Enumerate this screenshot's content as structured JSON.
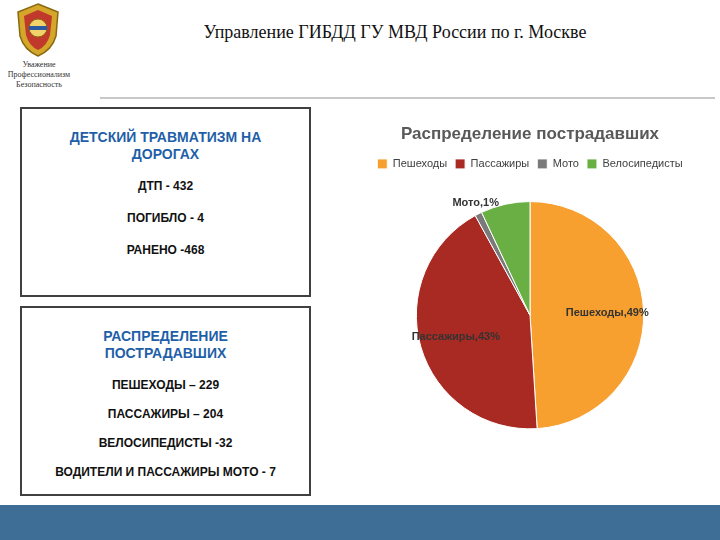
{
  "header": {
    "title": "Управление ГИБДД ГУ МВД России по г. Москве",
    "motto": [
      "Уважение",
      "Профессионализм",
      "Безопасность"
    ]
  },
  "boxes": [
    {
      "title": "ДЕТСКИЙ ТРАВМАТИЗМ НА ДОРОГАХ",
      "lines": [
        "ДТП - 432",
        "ПОГИБЛО - 4",
        "РАНЕНО -468"
      ]
    },
    {
      "title": "РАСПРЕДЕЛЕНИЕ ПОСТРАДАВШИХ",
      "lines": [
        "ПЕШЕХОДЫ – 229",
        "ПАССАЖИРЫ – 204",
        "ВЕЛОСИПЕДИСТЫ -32",
        "ВОДИТЕЛИ И ПАССАЖИРЫ МОТО - 7"
      ]
    }
  ],
  "chart_data": {
    "type": "pie",
    "title": "Распределение пострадавших",
    "categories": [
      "Пешеходы",
      "Пассажиры",
      "Мото",
      "Велосипедисты"
    ],
    "values": [
      49,
      43,
      1,
      7
    ],
    "colors": [
      "#f7a030",
      "#a82a22",
      "#7a7a7a",
      "#6aaf44"
    ],
    "legend": "top",
    "data_labels": true,
    "value_labels": [
      "Пешеходы,49%",
      "Пассажиры,43%",
      "Мото,1%",
      null
    ]
  }
}
